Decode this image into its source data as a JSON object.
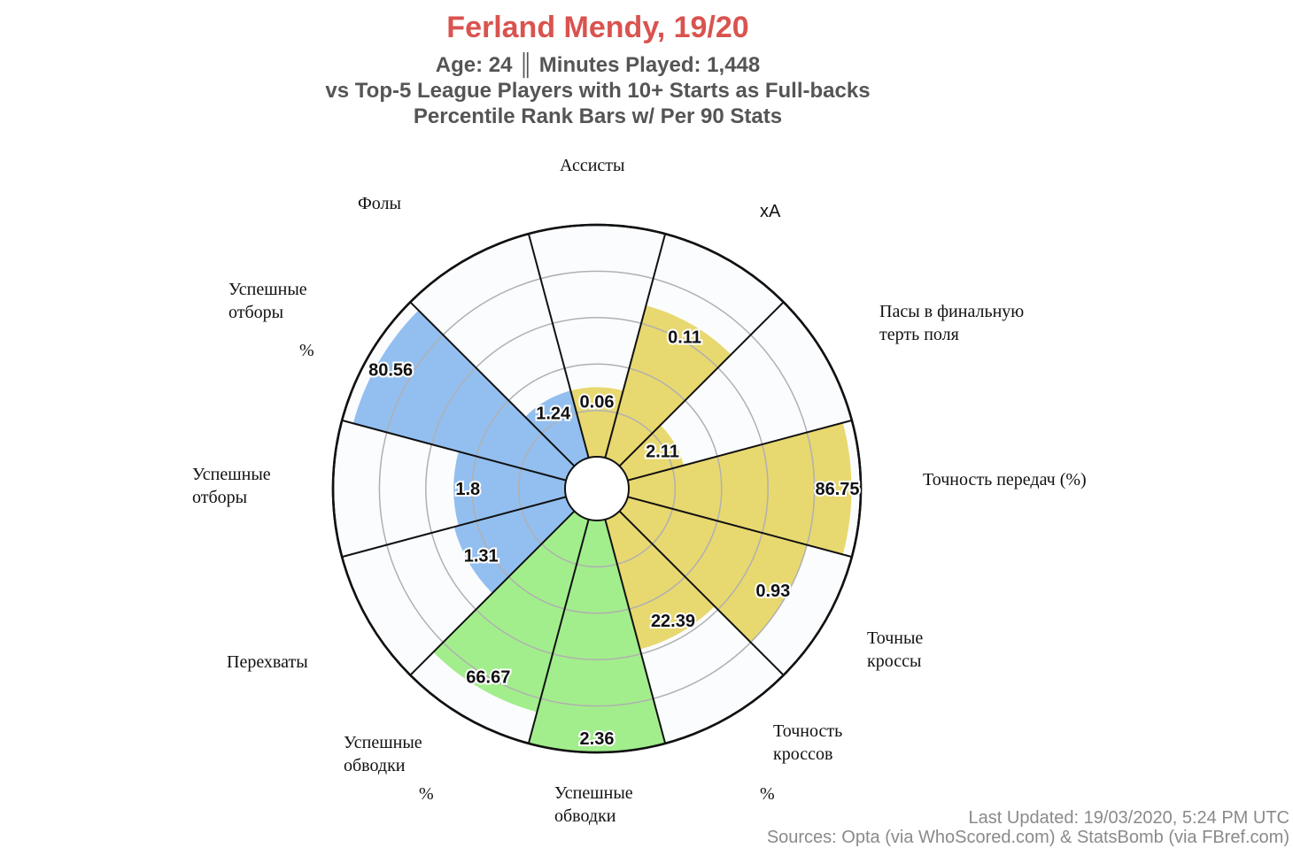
{
  "header": {
    "title": "Ferland Mendy, 19/20",
    "subtitle_1": "Age: 24 ║ Minutes Played: 1,448",
    "subtitle_2": "vs Top-5 League Players with 10+ Starts as Full-backs",
    "subtitle_3": "Percentile Rank Bars w/ Per 90 Stats"
  },
  "footer": {
    "updated": "Last Updated: 19/03/2020, 5:24 PM UTC",
    "sources": "Sources: Opta (via WhoScored.com) & StatsBomb (via FBref.com)"
  },
  "labels": {
    "assists": "Ассисты",
    "xa": "xA",
    "final_third": "Пасы в финальную\nтерть поля",
    "pass_acc": "Точность передач (%)",
    "crosses": "Точные\nкроссы",
    "cross_acc": "Точность\nкроссов",
    "cross_acc_pct": "%",
    "dribbles": "Успешные\nобводки",
    "dribble_pct": "Успешные\nобводки",
    "dribble_pct_mark": "%",
    "interceptions": "Перехваты",
    "tackles": "Успешные\nотборы",
    "tackle_pct": "Успешные\nотборы",
    "tackle_pct_mark": "%",
    "fouls": "Фолы"
  },
  "colors": {
    "attacking": "#e8d870",
    "possession": "#a2ee8c",
    "defending": "#92bff0",
    "title": "#d9534f"
  },
  "chart_data": {
    "type": "polar_bar",
    "title": "Ferland Mendy, 19/20",
    "scale": [
      0,
      100
    ],
    "gridlines": [
      20,
      40,
      60,
      80
    ],
    "series": [
      {
        "category": "Ассисты",
        "value": "0.06",
        "percentile": 30,
        "group": "attacking"
      },
      {
        "category": "xA",
        "value": "0.11",
        "percentile": 68,
        "group": "attacking"
      },
      {
        "category": "Пасы в финальную терть поля",
        "value": "2.11",
        "percentile": 25,
        "group": "attacking"
      },
      {
        "category": "Точность передач (%)",
        "value": "86.75",
        "percentile": 96,
        "group": "attacking"
      },
      {
        "category": "Точные кроссы",
        "value": "0.93",
        "percentile": 80,
        "group": "attacking"
      },
      {
        "category": "Точность кроссов %",
        "value": "22.39",
        "percentile": 58,
        "group": "attacking"
      },
      {
        "category": "Успешные обводки",
        "value": "2.36",
        "percentile": 100,
        "group": "possession"
      },
      {
        "category": "Успешные обводки %",
        "value": "66.67",
        "percentile": 86,
        "group": "possession"
      },
      {
        "category": "Перехваты",
        "value": "1.31",
        "percentile": 50,
        "group": "defending"
      },
      {
        "category": "Успешные отборы",
        "value": "1.8",
        "percentile": 48,
        "group": "defending"
      },
      {
        "category": "Успешные отборы %",
        "value": "80.56",
        "percentile": 95,
        "group": "defending"
      },
      {
        "category": "Фолы",
        "value": "1.24",
        "percentile": 30,
        "group": "defending"
      }
    ]
  }
}
